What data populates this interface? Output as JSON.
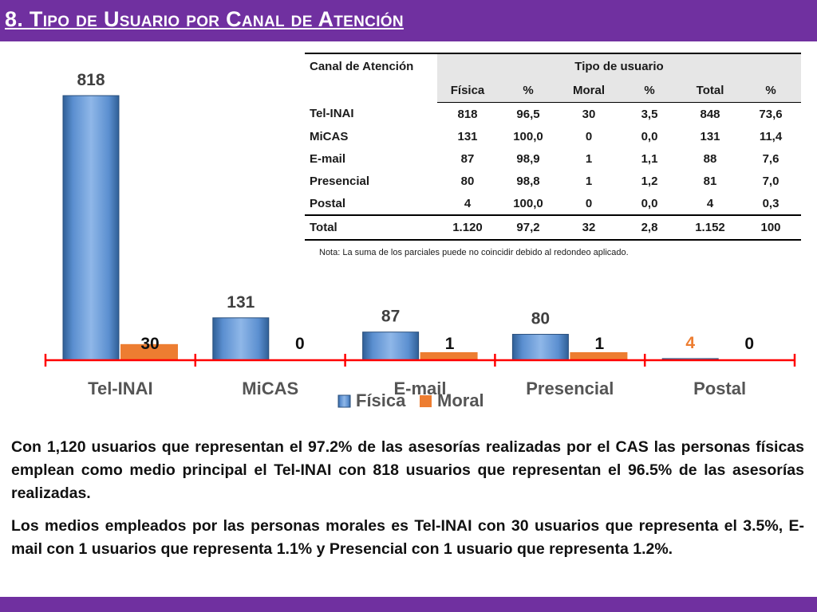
{
  "title": "8. Tipo de Usuario por Canal de Atención",
  "table": {
    "header_channel": "Canal de Atención",
    "header_group": "Tipo de usuario",
    "columns": [
      "Física",
      "%",
      "Moral",
      "%",
      "Total",
      "%"
    ],
    "rows": [
      {
        "label": "Tel-INAI",
        "cells": [
          "818",
          "96,5",
          "30",
          "3,5",
          "848",
          "73,6"
        ]
      },
      {
        "label": "MiCAS",
        "cells": [
          "131",
          "100,0",
          "0",
          "0,0",
          "131",
          "11,4"
        ]
      },
      {
        "label": "E-mail",
        "cells": [
          "87",
          "98,9",
          "1",
          "1,1",
          "88",
          "7,6"
        ]
      },
      {
        "label": "Presencial",
        "cells": [
          "80",
          "98,8",
          "1",
          "1,2",
          "81",
          "7,0"
        ]
      },
      {
        "label": "Postal",
        "cells": [
          "4",
          "100,0",
          "0",
          "0,0",
          "4",
          "0,3"
        ]
      }
    ],
    "total": {
      "label": "Total",
      "cells": [
        "1.120",
        "97,2",
        "32",
        "2,8",
        "1.152",
        "100"
      ]
    },
    "note": "Nota: La suma de los parciales puede no coincidir debido al redondeo aplicado."
  },
  "chart_data": {
    "type": "bar",
    "categories": [
      "Tel-INAI",
      "MiCAS",
      "E-mail",
      "Presencial",
      "Postal"
    ],
    "series": [
      {
        "name": "Física",
        "values": [
          818,
          131,
          87,
          80,
          4
        ],
        "color": "#4f81bd"
      },
      {
        "name": "Moral",
        "values": [
          30,
          0,
          1,
          1,
          0
        ],
        "color": "#ed7d31"
      }
    ],
    "ylim": [
      0,
      818
    ],
    "axis_color": "#ff0000",
    "legend_position": "bottom",
    "grid": false
  },
  "paragraphs": [
    "Con 1,120 usuarios que representan el 97.2% de las asesorías realizadas por el CAS las personas físicas emplean como medio principal el Tel-INAI con 818 usuarios que representan el 96.5% de las asesorías realizadas.",
    "Los medios empleados por las personas morales es Tel-INAI con 30 usuarios que representa el 3.5%, E-mail con 1 usuarios que representa 1.1% y Presencial con 1 usuario que representa 1.2%."
  ]
}
